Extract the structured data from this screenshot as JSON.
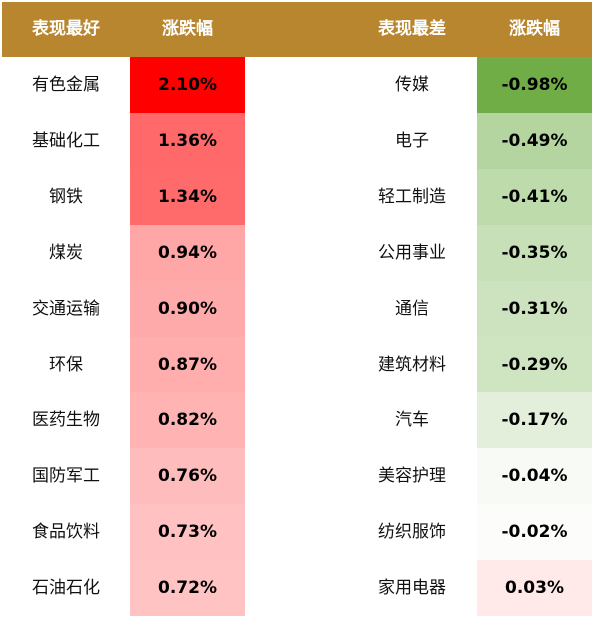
{
  "header": {
    "best_label": "表现最好",
    "best_change_label": "涨跌幅",
    "worst_label": "表现最差",
    "worst_change_label": "涨跌幅"
  },
  "chart_data": {
    "type": "table",
    "columns": [
      "表现最好",
      "涨跌幅",
      "表现最差",
      "涨跌幅"
    ],
    "best": [
      {
        "name": "有色金属",
        "value": "2.10%",
        "color": "#ff0000"
      },
      {
        "name": "基础化工",
        "value": "1.36%",
        "color": "#ff6969"
      },
      {
        "name": "钢铁",
        "value": "1.34%",
        "color": "#ff6b6b"
      },
      {
        "name": "煤炭",
        "value": "0.94%",
        "color": "#ffa6a6"
      },
      {
        "name": "交通运输",
        "value": "0.90%",
        "color": "#ffaaaa"
      },
      {
        "name": "环保",
        "value": "0.87%",
        "color": "#ffadad"
      },
      {
        "name": "医药生物",
        "value": "0.82%",
        "color": "#ffb3b3"
      },
      {
        "name": "国防军工",
        "value": "0.76%",
        "color": "#ffbcbc"
      },
      {
        "name": "食品饮料",
        "value": "0.73%",
        "color": "#ffc1c1"
      },
      {
        "name": "石油石化",
        "value": "0.72%",
        "color": "#ffc3c3"
      }
    ],
    "worst": [
      {
        "name": "传媒",
        "value": "-0.98%",
        "color": "#70ad47"
      },
      {
        "name": "电子",
        "value": "-0.49%",
        "color": "#b4d5a0"
      },
      {
        "name": "轻工制造",
        "value": "-0.41%",
        "color": "#bedbac"
      },
      {
        "name": "公用事业",
        "value": "-0.35%",
        "color": "#c7e0b7"
      },
      {
        "name": "通信",
        "value": "-0.31%",
        "color": "#cde3bf"
      },
      {
        "name": "建筑材料",
        "value": "-0.29%",
        "color": "#cfe5c2"
      },
      {
        "name": "汽车",
        "value": "-0.17%",
        "color": "#e3efdb"
      },
      {
        "name": "美容护理",
        "value": "-0.04%",
        "color": "#f7faf5"
      },
      {
        "name": "纺织服饰",
        "value": "-0.02%",
        "color": "#fcfdfb"
      },
      {
        "name": "家用电器",
        "value": "0.03%",
        "color": "#ffe9e9"
      }
    ]
  }
}
